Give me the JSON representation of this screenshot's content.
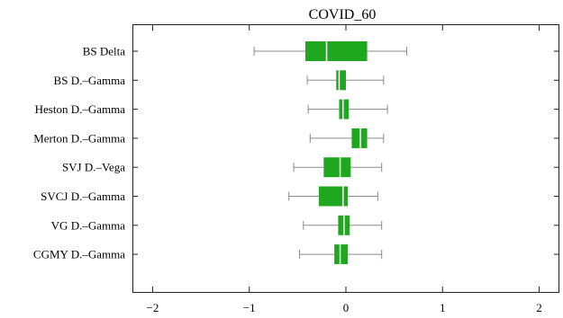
{
  "chart_data": {
    "type": "boxplot",
    "title": "COVID_60",
    "xlabel": "",
    "ylabel": "",
    "xlim": [
      -2.2,
      2.2
    ],
    "x_ticks": [
      {
        "value": -2,
        "label": "−2"
      },
      {
        "value": -1,
        "label": "−1"
      },
      {
        "value": 0,
        "label": "0"
      },
      {
        "value": 1,
        "label": "1"
      },
      {
        "value": 2,
        "label": "2"
      }
    ],
    "grid": false,
    "box_color": "#1fa81f",
    "categories": [
      "BS Delta",
      "BS D.–Gamma",
      "Heston D.–Gamma",
      "Merton D.–Gamma",
      "SVJ D.–Vega",
      "SVCJ D.–Gamma",
      "VG D.–Gamma",
      "CGMY D.–Gamma"
    ],
    "boxes": [
      {
        "min": -0.95,
        "q1": -0.42,
        "median": -0.2,
        "q3": 0.22,
        "max": 0.63
      },
      {
        "min": -0.4,
        "q1": -0.1,
        "median": -0.07,
        "q3": 0.0,
        "max": 0.39
      },
      {
        "min": -0.39,
        "q1": -0.07,
        "median": -0.03,
        "q3": 0.03,
        "max": 0.43
      },
      {
        "min": -0.37,
        "q1": 0.06,
        "median": 0.15,
        "q3": 0.22,
        "max": 0.39
      },
      {
        "min": -0.54,
        "q1": -0.23,
        "median": -0.06,
        "q3": 0.05,
        "max": 0.37
      },
      {
        "min": -0.59,
        "q1": -0.28,
        "median": -0.03,
        "q3": 0.02,
        "max": 0.33
      },
      {
        "min": -0.44,
        "q1": -0.08,
        "median": -0.02,
        "q3": 0.04,
        "max": 0.37
      },
      {
        "min": -0.48,
        "q1": -0.12,
        "median": -0.06,
        "q3": 0.02,
        "max": 0.37
      }
    ]
  }
}
